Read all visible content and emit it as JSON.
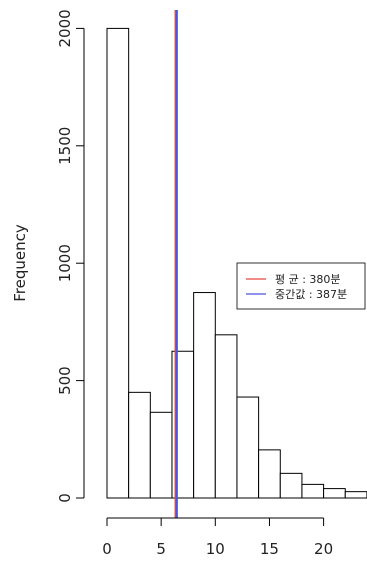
{
  "chart_data": {
    "type": "bar",
    "title": "",
    "xlabel": "",
    "ylabel": "Frequency",
    "bin_width": 2,
    "bins": [
      {
        "x0": 0,
        "x1": 2,
        "count": 2000
      },
      {
        "x0": 2,
        "x1": 4,
        "count": 450
      },
      {
        "x0": 4,
        "x1": 6,
        "count": 365
      },
      {
        "x0": 6,
        "x1": 8,
        "count": 625
      },
      {
        "x0": 8,
        "x1": 10,
        "count": 875
      },
      {
        "x0": 10,
        "x1": 12,
        "count": 695
      },
      {
        "x0": 12,
        "x1": 14,
        "count": 430
      },
      {
        "x0": 14,
        "x1": 16,
        "count": 205
      },
      {
        "x0": 16,
        "x1": 18,
        "count": 105
      },
      {
        "x0": 18,
        "x1": 20,
        "count": 58
      },
      {
        "x0": 20,
        "x1": 22,
        "count": 40
      },
      {
        "x0": 22,
        "x1": 24,
        "count": 27
      }
    ],
    "x_ticks": [
      0,
      5,
      10,
      15,
      20
    ],
    "y_ticks": [
      0,
      500,
      1000,
      1500,
      2000
    ],
    "xlim": [
      0,
      24
    ],
    "ylim": [
      0,
      2000
    ],
    "grid": false,
    "vlines": [
      {
        "name": "평  균 : 380분",
        "x": 6.33,
        "color": "#e8473c"
      },
      {
        "name": "중간값 : 387분",
        "x": 6.45,
        "color": "#4b55d6"
      }
    ],
    "legend": {
      "placement": "right",
      "entries": [
        "평  균 : 380분",
        "중간값 : 387분"
      ]
    }
  }
}
